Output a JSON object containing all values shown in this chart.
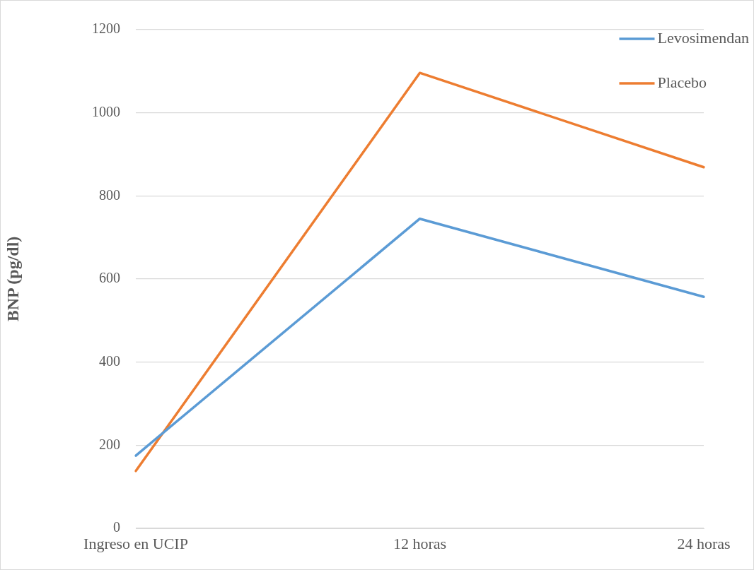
{
  "chart_data": {
    "type": "line",
    "ylabel": "BNP (pg/dl)",
    "categories": [
      "Ingreso en UCIP",
      "12 horas",
      "24 horas"
    ],
    "series": [
      {
        "name": "Levosimendan",
        "color": "#5b9bd5",
        "values": [
          175,
          745,
          557
        ]
      },
      {
        "name": "Placebo",
        "color": "#ed7d31",
        "values": [
          138,
          1096,
          869
        ]
      }
    ],
    "ylim": [
      0,
      1200
    ],
    "yticks": [
      0,
      200,
      400,
      600,
      800,
      1000,
      1200
    ],
    "grid": "y",
    "legend": "top right",
    "marker": "none",
    "line_style": "solid"
  }
}
